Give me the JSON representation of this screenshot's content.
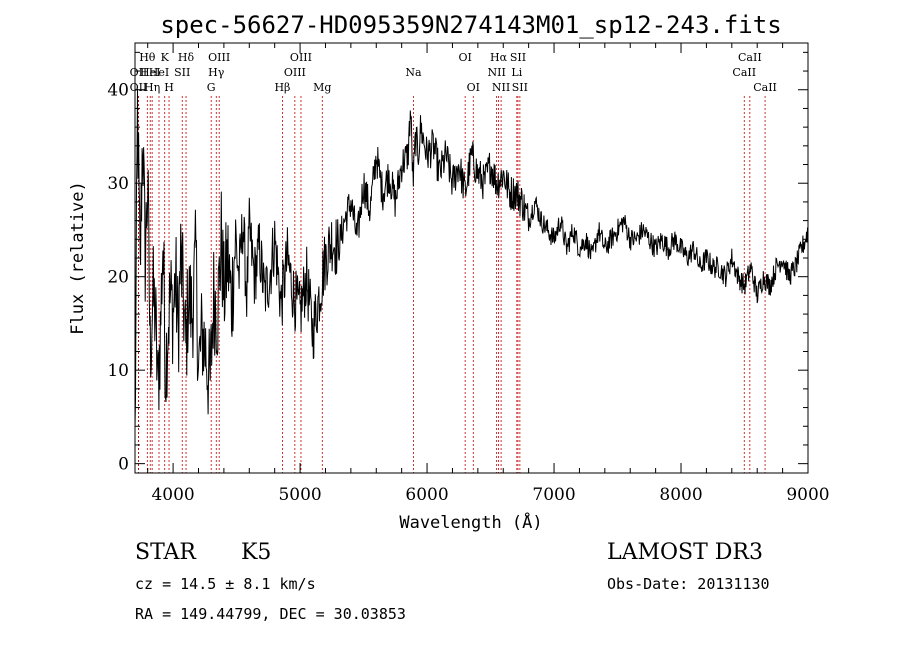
{
  "chart_data": {
    "type": "line",
    "title": "spec-56627-HD095359N274143M01_sp12-243.fits",
    "xlabel": "Wavelength (Å)",
    "ylabel": "Flux (relative)",
    "xlim": [
      3700,
      9000
    ],
    "ylim": [
      -1,
      45
    ],
    "x_ticks": [
      4000,
      5000,
      6000,
      7000,
      8000,
      9000
    ],
    "y_ticks": [
      0,
      10,
      20,
      30,
      40
    ],
    "series": [
      {
        "x": [
          3700,
          3720,
          3740,
          3760,
          3780,
          3800,
          3820,
          3840,
          3860,
          3880,
          3900,
          3920,
          3940,
          3960,
          3980,
          4000,
          4020,
          4040,
          4060,
          4080,
          4100,
          4120,
          4150,
          4180,
          4200,
          4230,
          4260,
          4290,
          4320,
          4350,
          4380,
          4400,
          4430,
          4460,
          4490,
          4520,
          4550,
          4580,
          4600,
          4640,
          4680,
          4720,
          4760,
          4800,
          4850,
          4900,
          4950,
          5000,
          5050,
          5100,
          5150,
          5200,
          5250,
          5300,
          5350,
          5400,
          5450,
          5500,
          5550,
          5600,
          5650,
          5700,
          5750,
          5800,
          5850,
          5870,
          5890,
          5910,
          5930,
          5950,
          6000,
          6050,
          6100,
          6150,
          6200,
          6250,
          6300,
          6350,
          6400,
          6450,
          6500,
          6550,
          6600,
          6650,
          6700,
          6750,
          6800,
          6850,
          6900,
          6950,
          7000,
          7050,
          7100,
          7150,
          7200,
          7250,
          7300,
          7350,
          7400,
          7450,
          7500,
          7550,
          7600,
          7650,
          7700,
          7750,
          7800,
          7850,
          7900,
          7950,
          8000,
          8050,
          8100,
          8150,
          8200,
          8250,
          8300,
          8350,
          8400,
          8450,
          8500,
          8550,
          8600,
          8650,
          8700,
          8750,
          8800,
          8850,
          8900,
          8950,
          8980,
          9000
        ],
        "y": [
          2,
          38,
          20,
          36,
          22,
          30,
          12,
          18,
          16,
          8,
          14,
          24,
          10,
          15,
          18,
          16,
          20,
          14,
          22,
          18,
          12,
          18,
          16,
          22,
          10,
          14,
          12,
          8,
          18,
          16,
          24,
          18,
          22,
          17,
          24,
          20,
          26,
          18,
          25,
          20,
          23,
          18,
          20,
          24,
          17,
          22,
          18,
          16,
          20,
          14,
          18,
          22,
          24,
          23,
          26,
          28,
          24,
          30,
          27,
          33,
          29,
          31,
          28,
          32,
          33,
          38,
          30,
          35,
          33,
          36,
          33,
          34,
          31,
          33,
          30,
          32,
          29,
          33,
          31,
          30,
          32,
          30,
          31,
          29,
          29,
          28,
          26,
          28,
          26,
          25,
          24,
          26,
          23,
          25,
          23,
          24,
          22,
          25,
          23,
          24,
          25,
          26,
          24,
          24,
          25,
          24,
          23,
          24,
          23,
          24,
          23,
          22,
          23,
          21,
          22,
          21,
          21,
          20,
          22,
          20,
          19,
          21,
          18,
          20,
          19,
          21,
          22,
          20,
          21,
          23,
          24,
          25
        ]
      }
    ],
    "line_markers": [
      {
        "x": 3727,
        "row": 1,
        "label": "OII"
      },
      {
        "x": 3727,
        "row": 2,
        "label": "OII"
      },
      {
        "x": 3797,
        "row": 0,
        "label": "Hθ"
      },
      {
        "x": 3820,
        "row": 1,
        "label": "HeI"
      },
      {
        "x": 3835,
        "row": 2,
        "label": "Hη"
      },
      {
        "x": 3889,
        "row": 1,
        "label": "HeI"
      },
      {
        "x": 3934,
        "row": 0,
        "label": "K"
      },
      {
        "x": 3968,
        "row": 2,
        "label": "H"
      },
      {
        "x": 4072,
        "row": 1,
        "label": "SII"
      },
      {
        "x": 4102,
        "row": 0,
        "label": "Hδ"
      },
      {
        "x": 4300,
        "row": 2,
        "label": "G"
      },
      {
        "x": 4340,
        "row": 1,
        "label": "Hγ"
      },
      {
        "x": 4363,
        "row": 0,
        "label": "OIII"
      },
      {
        "x": 4861,
        "row": 2,
        "label": "Hβ"
      },
      {
        "x": 4959,
        "row": 1,
        "label": "OIII"
      },
      {
        "x": 5007,
        "row": 0,
        "label": "OIII"
      },
      {
        "x": 5175,
        "row": 2,
        "label": "Mg"
      },
      {
        "x": 5893,
        "row": 1,
        "label": "Na"
      },
      {
        "x": 6300,
        "row": 0,
        "label": "OI"
      },
      {
        "x": 6364,
        "row": 2,
        "label": "OI"
      },
      {
        "x": 6548,
        "row": 1,
        "label": "NII"
      },
      {
        "x": 6563,
        "row": 0,
        "label": "Hα"
      },
      {
        "x": 6583,
        "row": 2,
        "label": "NII"
      },
      {
        "x": 6707,
        "row": 1,
        "label": "Li"
      },
      {
        "x": 6716,
        "row": 0,
        "label": "SII"
      },
      {
        "x": 6731,
        "row": 2,
        "label": "SII"
      },
      {
        "x": 8498,
        "row": 1,
        "label": "CaII"
      },
      {
        "x": 8542,
        "row": 0,
        "label": "CaII"
      },
      {
        "x": 8662,
        "row": 2,
        "label": "CaII"
      }
    ]
  },
  "info": {
    "class": "STAR",
    "subclass": "K5",
    "cz": "cz = 14.5 ± 8.1 km/s",
    "radec": "RA = 149.44799, DEC =  30.03853",
    "survey": "LAMOST DR3",
    "obsdate": "Obs-Date: 20131130"
  }
}
